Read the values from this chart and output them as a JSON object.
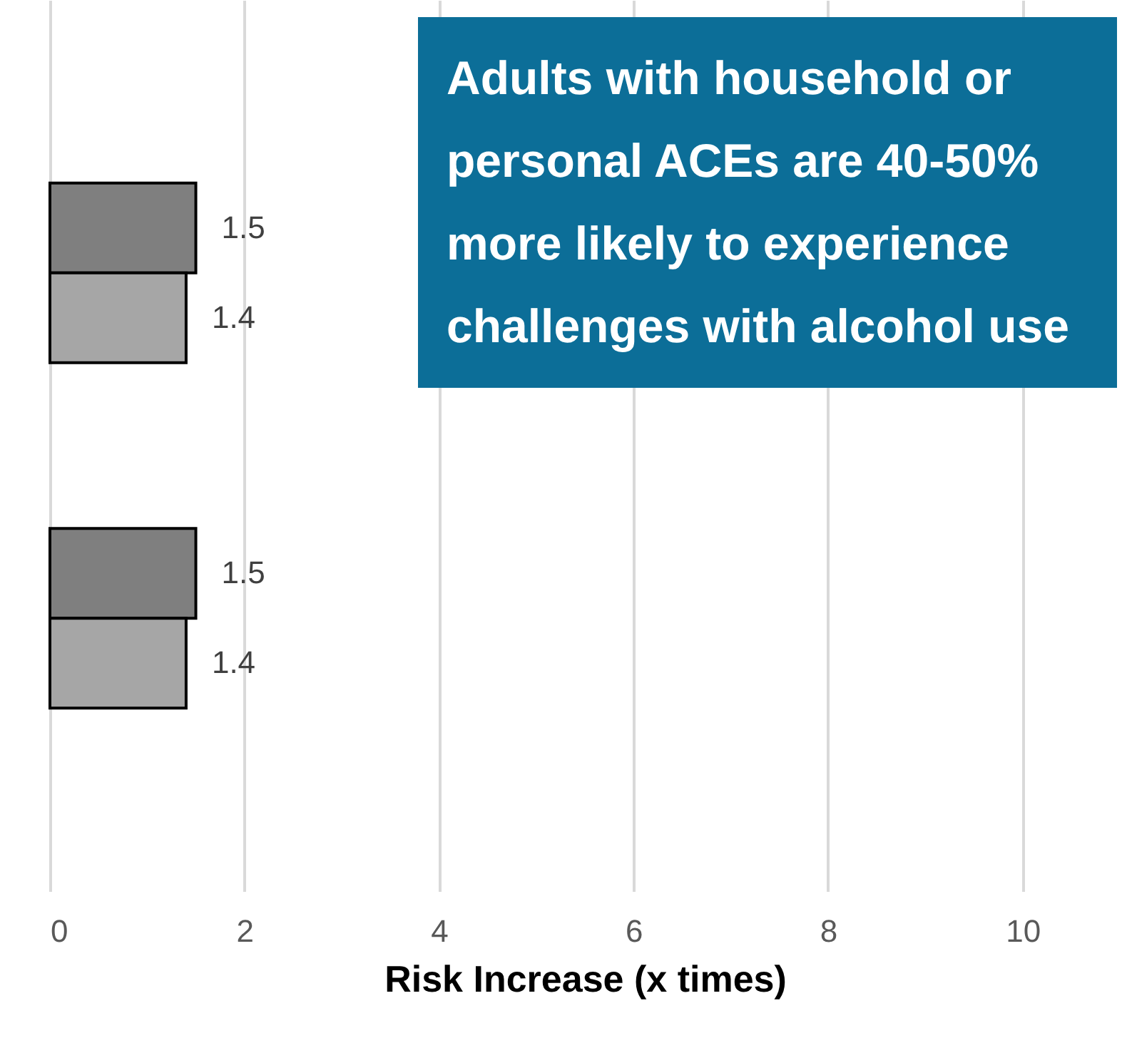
{
  "chart_data": {
    "type": "bar",
    "orientation": "horizontal",
    "categories": [
      null,
      null
    ],
    "series": [
      {
        "color": "#7f7f7f",
        "values": [
          1.5,
          1.5
        ]
      },
      {
        "color": "#a6a6a6",
        "values": [
          1.4,
          1.4
        ]
      }
    ],
    "xlim": [
      0,
      11
    ],
    "xticks": [
      0,
      2,
      4,
      6,
      8,
      10
    ],
    "xlabel": "Risk Increase (x times)",
    "grid": "x",
    "data_labels": true,
    "annotations": [
      "Adults with household or personal ACEs are 40-50% more likely to experience challenges with alcohol use"
    ]
  }
}
